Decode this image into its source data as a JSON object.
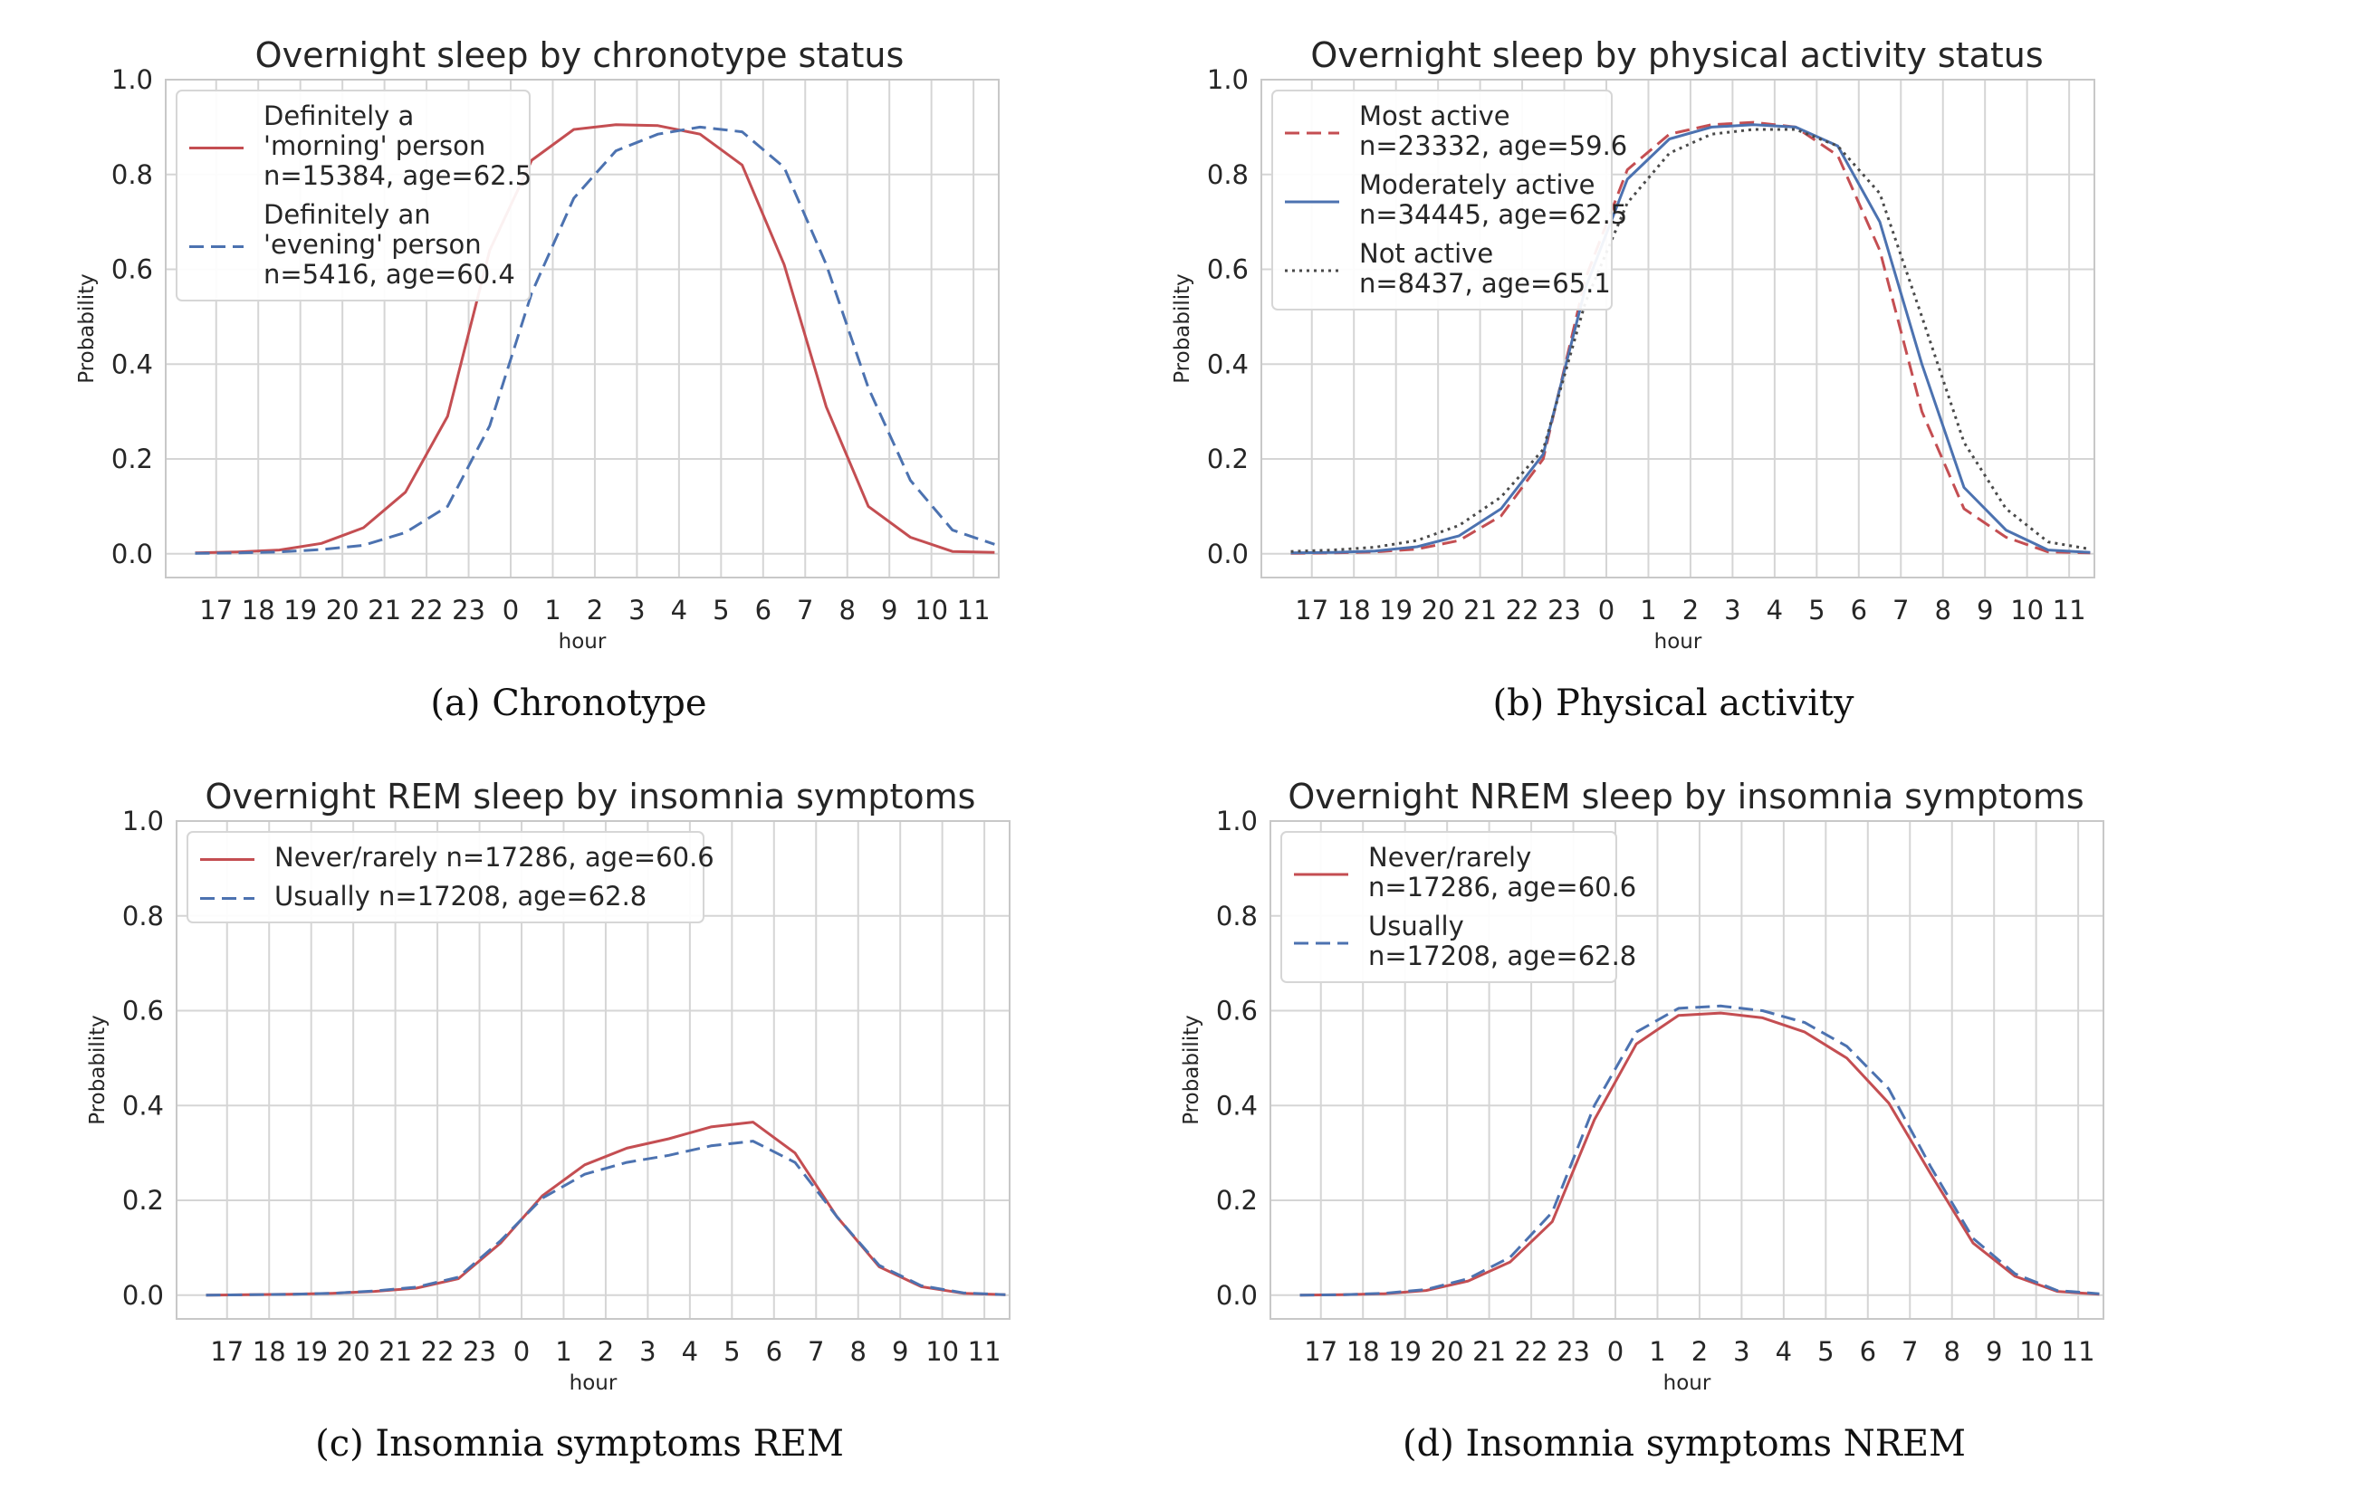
{
  "colors": {
    "red": "#c44e52",
    "blue": "#4c72b0",
    "gray": "#4a4a4a"
  },
  "chart_data": [
    {
      "type": "line",
      "title": "Overnight sleep by chronotype status",
      "caption": "(a) Chronotype",
      "xlabel": "hour",
      "ylabel": "Probability",
      "xticks": [
        "17",
        "18",
        "19",
        "20",
        "21",
        "22",
        "23",
        "0",
        "1",
        "2",
        "3",
        "4",
        "5",
        "6",
        "7",
        "8",
        "9",
        "10",
        "11"
      ],
      "yticks": [
        "0.0",
        "0.2",
        "0.4",
        "0.6",
        "0.8",
        "1.0"
      ],
      "ylim": [
        0,
        1
      ],
      "grid": true,
      "legend_position": "upper-left",
      "series": [
        {
          "name": "Definitely a\n'morning' person\nn=15384, age=62.5",
          "color": "#c44e52",
          "style": "solid",
          "x": [
            -7.5,
            -6.5,
            -5.5,
            -4.5,
            -3.5,
            -2.5,
            -1.5,
            -0.5,
            0.5,
            1.5,
            2.5,
            3.5,
            4.5,
            5.5,
            6.5,
            7.5,
            8.5,
            9.5,
            10.5,
            11.5
          ],
          "y": [
            0.002,
            0.004,
            0.008,
            0.022,
            0.055,
            0.13,
            0.29,
            0.64,
            0.83,
            0.895,
            0.905,
            0.903,
            0.885,
            0.82,
            0.61,
            0.31,
            0.1,
            0.035,
            0.005,
            0.003
          ]
        },
        {
          "name": "Definitely an\n'evening' person\nn=5416, age=60.4",
          "color": "#4c72b0",
          "style": "dashed",
          "x": [
            -7.5,
            -6.5,
            -5.5,
            -4.5,
            -3.5,
            -2.5,
            -1.5,
            -0.5,
            0.5,
            1.5,
            2.5,
            3.5,
            4.5,
            5.5,
            6.5,
            7.5,
            8.5,
            9.5,
            10.5,
            11.5
          ],
          "y": [
            0.001,
            0.002,
            0.004,
            0.009,
            0.018,
            0.045,
            0.1,
            0.27,
            0.55,
            0.75,
            0.85,
            0.885,
            0.9,
            0.89,
            0.815,
            0.61,
            0.35,
            0.155,
            0.05,
            0.02
          ]
        }
      ]
    },
    {
      "type": "line",
      "title": "Overnight sleep by physical activity status",
      "caption": "(b) Physical activity",
      "xlabel": "hour",
      "ylabel": "Probability",
      "xticks": [
        "17",
        "18",
        "19",
        "20",
        "21",
        "22",
        "23",
        "0",
        "1",
        "2",
        "3",
        "4",
        "5",
        "6",
        "7",
        "8",
        "9",
        "10",
        "11"
      ],
      "yticks": [
        "0.0",
        "0.2",
        "0.4",
        "0.6",
        "0.8",
        "1.0"
      ],
      "ylim": [
        0,
        1
      ],
      "grid": true,
      "legend_position": "upper-left",
      "series": [
        {
          "name": "Most active\nn=23332, age=59.6",
          "color": "#c44e52",
          "style": "dashed",
          "x": [
            -7.5,
            -6.5,
            -5.5,
            -4.5,
            -3.5,
            -2.5,
            -1.5,
            -0.5,
            0.5,
            1.5,
            2.5,
            3.5,
            4.5,
            5.5,
            6.5,
            7.5,
            8.5,
            9.5,
            10.5,
            11.5
          ],
          "y": [
            0.001,
            0.002,
            0.004,
            0.01,
            0.028,
            0.08,
            0.2,
            0.58,
            0.81,
            0.885,
            0.905,
            0.91,
            0.9,
            0.84,
            0.64,
            0.3,
            0.095,
            0.035,
            0.004,
            0.002
          ]
        },
        {
          "name": "Moderately active\nn=34445, age=62.5",
          "color": "#4c72b0",
          "style": "solid",
          "x": [
            -7.5,
            -6.5,
            -5.5,
            -4.5,
            -3.5,
            -2.5,
            -1.5,
            -0.5,
            0.5,
            1.5,
            2.5,
            3.5,
            4.5,
            5.5,
            6.5,
            7.5,
            8.5,
            9.5,
            10.5,
            11.5
          ],
          "y": [
            0.002,
            0.003,
            0.006,
            0.015,
            0.038,
            0.095,
            0.21,
            0.56,
            0.79,
            0.875,
            0.9,
            0.905,
            0.9,
            0.86,
            0.7,
            0.4,
            0.14,
            0.05,
            0.008,
            0.003
          ]
        },
        {
          "name": "Not active\nn=8437, age=65.1",
          "color": "#4a4a4a",
          "style": "dotted",
          "x": [
            -7.5,
            -6.5,
            -5.5,
            -4.5,
            -3.5,
            -2.5,
            -1.5,
            -0.5,
            0.5,
            1.5,
            2.5,
            3.5,
            4.5,
            5.5,
            6.5,
            7.5,
            8.5,
            9.5,
            10.5,
            11.5
          ],
          "y": [
            0.005,
            0.008,
            0.014,
            0.028,
            0.06,
            0.12,
            0.22,
            0.53,
            0.74,
            0.845,
            0.885,
            0.895,
            0.895,
            0.86,
            0.76,
            0.5,
            0.235,
            0.095,
            0.025,
            0.01
          ]
        }
      ]
    },
    {
      "type": "line",
      "title": "Overnight REM sleep by insomnia symptoms",
      "caption": "(c) Insomnia symptoms REM",
      "xlabel": "hour",
      "ylabel": "Probability",
      "xticks": [
        "17",
        "18",
        "19",
        "20",
        "21",
        "22",
        "23",
        "0",
        "1",
        "2",
        "3",
        "4",
        "5",
        "6",
        "7",
        "8",
        "9",
        "10",
        "11"
      ],
      "yticks": [
        "0.0",
        "0.2",
        "0.4",
        "0.6",
        "0.8",
        "1.0"
      ],
      "ylim": [
        0,
        1
      ],
      "grid": true,
      "legend_position": "upper-left",
      "series": [
        {
          "name": "Never/rarely n=17286, age=60.6",
          "color": "#c44e52",
          "style": "solid",
          "x": [
            -7.5,
            -6.5,
            -5.5,
            -4.5,
            -3.5,
            -2.5,
            -1.5,
            -0.5,
            0.5,
            1.5,
            2.5,
            3.5,
            4.5,
            5.5,
            6.5,
            7.5,
            8.5,
            9.5,
            10.5,
            11.5
          ],
          "y": [
            0,
            0.001,
            0.002,
            0.004,
            0.008,
            0.015,
            0.035,
            0.11,
            0.21,
            0.275,
            0.31,
            0.33,
            0.355,
            0.365,
            0.3,
            0.165,
            0.06,
            0.018,
            0.004,
            0.001
          ]
        },
        {
          "name": "Usually n=17208, age=62.8",
          "color": "#4c72b0",
          "style": "dashed",
          "x": [
            -7.5,
            -6.5,
            -5.5,
            -4.5,
            -3.5,
            -2.5,
            -1.5,
            -0.5,
            0.5,
            1.5,
            2.5,
            3.5,
            4.5,
            5.5,
            6.5,
            7.5,
            8.5,
            9.5,
            10.5,
            11.5
          ],
          "y": [
            0,
            0.001,
            0.002,
            0.004,
            0.009,
            0.017,
            0.038,
            0.115,
            0.205,
            0.255,
            0.28,
            0.295,
            0.315,
            0.325,
            0.28,
            0.165,
            0.063,
            0.02,
            0.005,
            0.001
          ]
        }
      ]
    },
    {
      "type": "line",
      "title": "Overnight NREM sleep by insomnia symptoms",
      "caption": "(d) Insomnia symptoms NREM",
      "xlabel": "hour",
      "ylabel": "Probability",
      "xticks": [
        "17",
        "18",
        "19",
        "20",
        "21",
        "22",
        "23",
        "0",
        "1",
        "2",
        "3",
        "4",
        "5",
        "6",
        "7",
        "8",
        "9",
        "10",
        "11"
      ],
      "yticks": [
        "0.0",
        "0.2",
        "0.4",
        "0.6",
        "0.8",
        "1.0"
      ],
      "ylim": [
        0,
        1
      ],
      "grid": true,
      "legend_position": "upper-left",
      "series": [
        {
          "name": "Never/rarely\nn=17286, age=60.6",
          "color": "#c44e52",
          "style": "solid",
          "x": [
            -7.5,
            -6.5,
            -5.5,
            -4.5,
            -3.5,
            -2.5,
            -1.5,
            -0.5,
            0.5,
            1.5,
            2.5,
            3.5,
            4.5,
            5.5,
            6.5,
            7.5,
            8.5,
            9.5,
            10.5,
            11.5
          ],
          "y": [
            0,
            0.001,
            0.003,
            0.01,
            0.03,
            0.07,
            0.155,
            0.37,
            0.53,
            0.59,
            0.595,
            0.585,
            0.555,
            0.5,
            0.405,
            0.255,
            0.11,
            0.04,
            0.008,
            0.002
          ]
        },
        {
          "name": "Usually\nn=17208, age=62.8",
          "color": "#4c72b0",
          "style": "dashed",
          "x": [
            -7.5,
            -6.5,
            -5.5,
            -4.5,
            -3.5,
            -2.5,
            -1.5,
            -0.5,
            0.5,
            1.5,
            2.5,
            3.5,
            4.5,
            5.5,
            6.5,
            7.5,
            8.5,
            9.5,
            10.5,
            11.5
          ],
          "y": [
            0,
            0.001,
            0.004,
            0.012,
            0.035,
            0.08,
            0.175,
            0.4,
            0.555,
            0.605,
            0.61,
            0.6,
            0.575,
            0.525,
            0.435,
            0.27,
            0.12,
            0.045,
            0.01,
            0.003
          ]
        }
      ]
    }
  ]
}
